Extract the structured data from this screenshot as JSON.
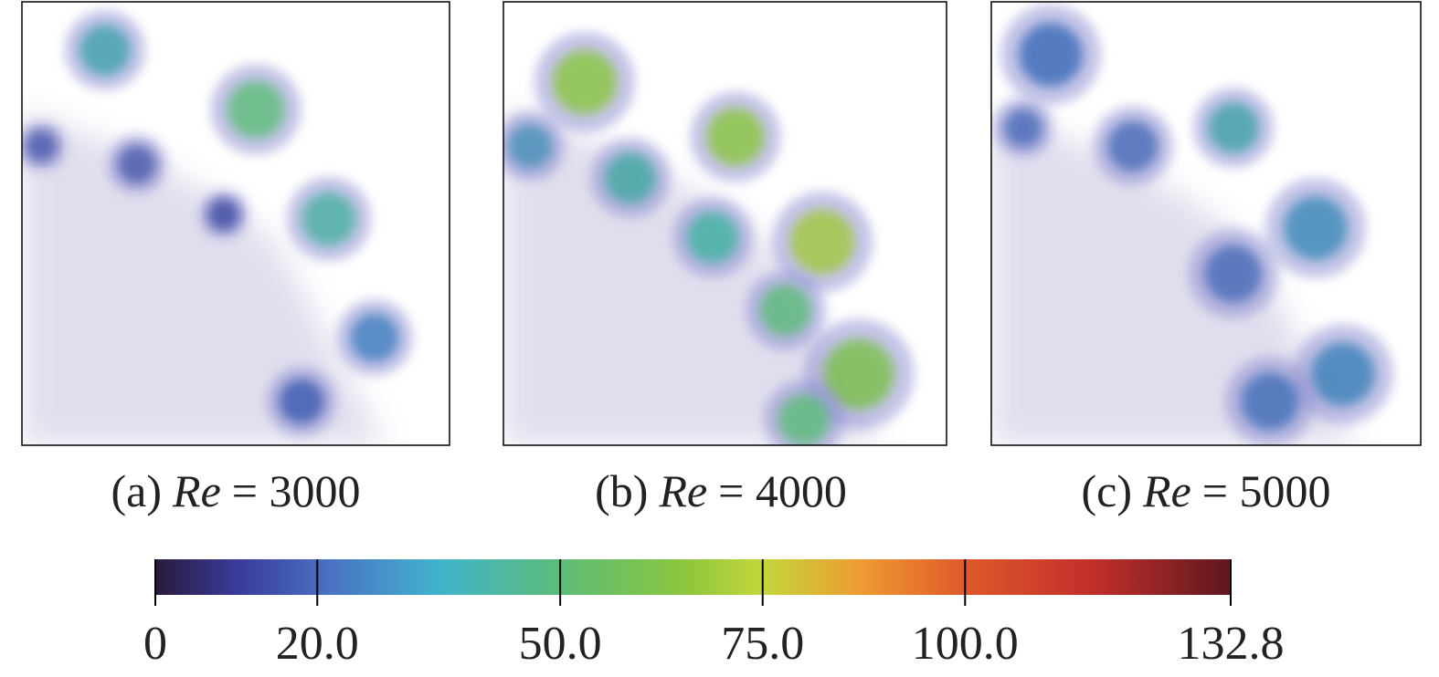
{
  "panels": [
    {
      "label": "(a)",
      "variable": "Re",
      "value": "= 3000"
    },
    {
      "label": "(b)",
      "variable": "Re",
      "value": "= 4000"
    },
    {
      "label": "(c)",
      "variable": "Re",
      "value": "= 5000"
    }
  ],
  "colorbar": {
    "range": [
      0,
      132.8
    ],
    "ticks": [
      0,
      {
        "value": 20,
        "label": "20.0"
      },
      {
        "value": 50,
        "label": "50.0"
      },
      {
        "value": 75,
        "label": "75.0"
      },
      {
        "value": 100,
        "label": "100.0"
      },
      132.8
    ],
    "stops": [
      [
        0,
        "#2a1a3a"
      ],
      [
        10,
        "#3a3a9a"
      ],
      [
        22,
        "#4a74c4"
      ],
      [
        35,
        "#40b4cc"
      ],
      [
        50,
        "#5cbc78"
      ],
      [
        65,
        "#8ac63e"
      ],
      [
        75,
        "#c4d63a"
      ],
      [
        87,
        "#ee9c32"
      ],
      [
        100,
        "#e0582a"
      ],
      [
        116,
        "#c02e2a"
      ],
      [
        132.8,
        "#5e1820"
      ]
    ]
  }
}
